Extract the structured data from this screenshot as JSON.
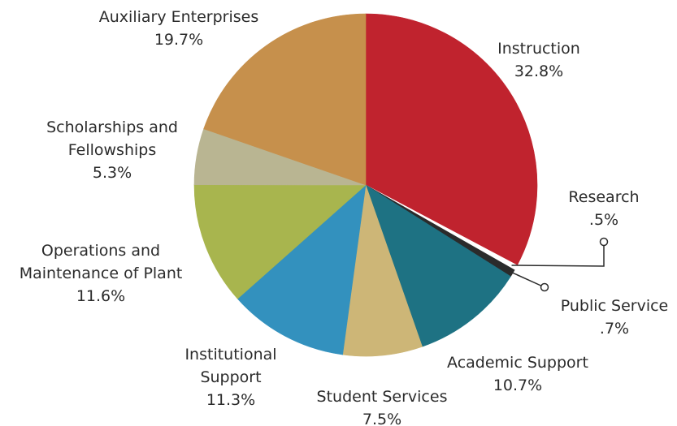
{
  "chart_data": {
    "type": "pie",
    "title": "",
    "start_angle_deg": 0,
    "direction": "clockwise",
    "slices": [
      {
        "label": "Instruction",
        "display": "32.8%",
        "value": 32.8,
        "color": "#c0232e"
      },
      {
        "label": "Research",
        "display": ".5%",
        "value": 0.5,
        "color": "#ffffff"
      },
      {
        "label": "Public Service",
        "display": ".7%",
        "value": 0.7,
        "color": "#2b2b2b"
      },
      {
        "label": "Academic Support",
        "display": "10.7%",
        "value": 10.7,
        "color": "#1e7283"
      },
      {
        "label": "Student Services",
        "display": "7.5%",
        "value": 7.5,
        "color": "#cdb677"
      },
      {
        "label": "Institutional Support",
        "display": "11.3%",
        "value": 11.3,
        "color": "#3391be"
      },
      {
        "label": "Operations and Maintenance of Plant",
        "display": "11.6%",
        "value": 11.6,
        "color": "#a8b54e"
      },
      {
        "label": "Scholarships and Fellowships",
        "display": "5.3%",
        "value": 5.3,
        "color": "#b9b592"
      },
      {
        "label": "Auxiliary Enterprises",
        "display": "19.7%",
        "value": 19.7,
        "color": "#c6904c"
      }
    ]
  }
}
